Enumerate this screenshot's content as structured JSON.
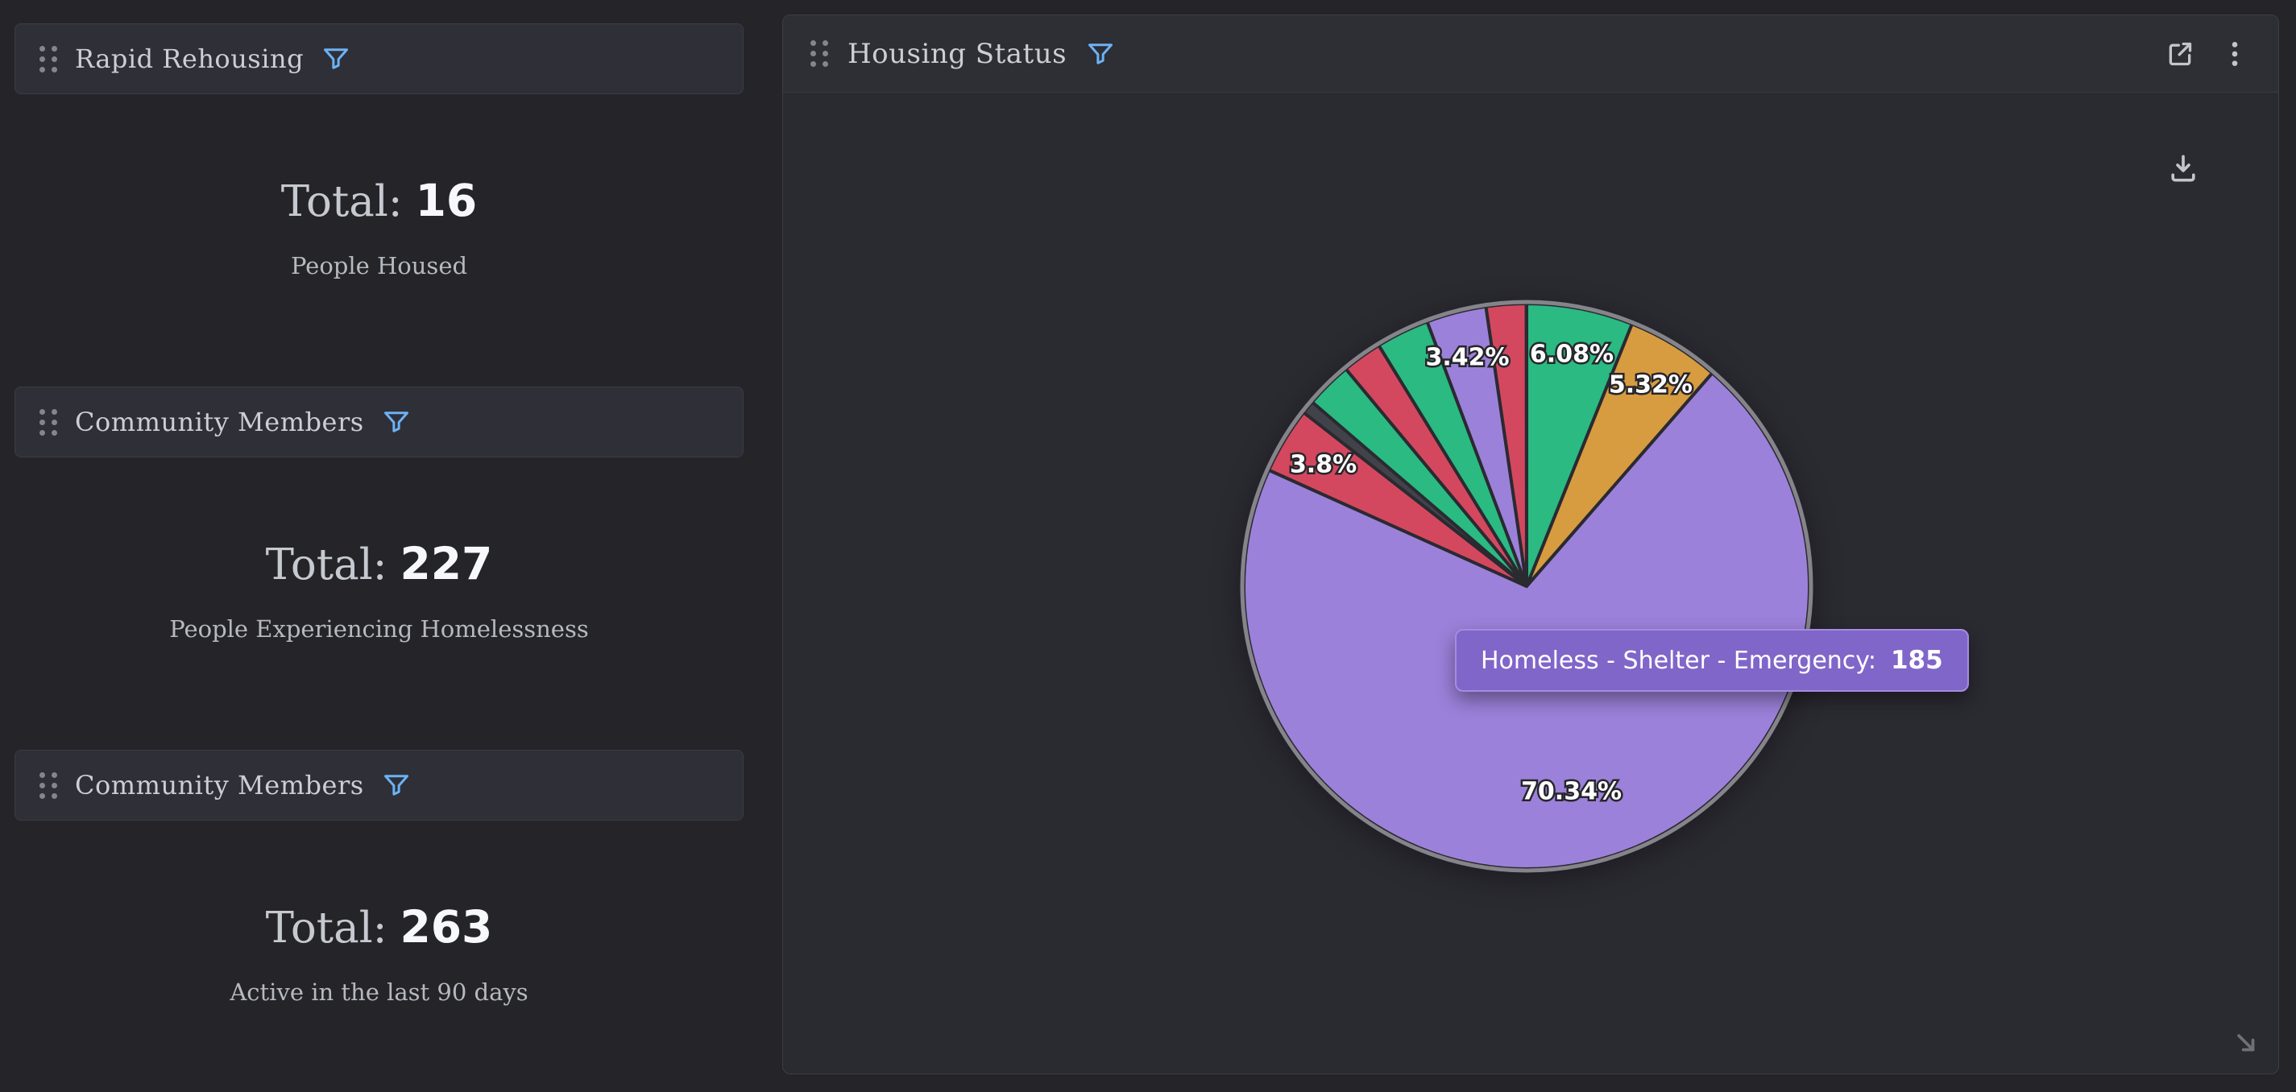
{
  "cards": [
    {
      "title": "Rapid Rehousing",
      "total_label": "Total:",
      "total_value": "16",
      "subtitle": "People Housed"
    },
    {
      "title": "Community Members",
      "total_label": "Total:",
      "total_value": "227",
      "subtitle": "People Experiencing Homelessness"
    },
    {
      "title": "Community Members",
      "total_label": "Total:",
      "total_value": "263",
      "subtitle": "Active in the last 90 days"
    }
  ],
  "panel": {
    "title": "Housing Status"
  },
  "icons": {
    "drag_handle": "six-dot-grid",
    "filter": "funnel-outline",
    "open_external": "box-with-arrow",
    "menu": "vertical-three-dots",
    "download": "arrow-into-tray",
    "resize": "diagonal-arrow"
  },
  "colors": {
    "page_bg": "#242429",
    "panel_bg": "#2a2a31",
    "header_bg": "#2f3037",
    "filter_accent": "#6cb2f5",
    "tooltip_bg": "#8066c9",
    "tooltip_border": "#a48cdf",
    "pie_ring": "#84848a"
  },
  "chart_data": {
    "type": "pie",
    "title": "Housing Status",
    "total": 263,
    "legend_position": "none",
    "start_angle_deg": 0,
    "direction": "clockwise",
    "slices": [
      {
        "pct": 6.08,
        "label": "6.08%",
        "color": "#2aba82"
      },
      {
        "pct": 5.32,
        "label": "5.32%",
        "color": "#d79b40"
      },
      {
        "pct": 70.34,
        "label": "70.34%",
        "color": "#9c81da",
        "name": "Homeless - Shelter - Emergency",
        "value": 185
      },
      {
        "pct": 3.8,
        "label": "3.8%",
        "color": "#d4485f"
      },
      {
        "pct": 0.76,
        "label": "",
        "color": "#42424a"
      },
      {
        "pct": 2.66,
        "label": "",
        "color": "#2aba82"
      },
      {
        "pct": 2.28,
        "label": "",
        "color": "#d4485f"
      },
      {
        "pct": 3.04,
        "label": "",
        "color": "#2aba82"
      },
      {
        "pct": 3.42,
        "label": "3.42%",
        "color": "#9c81da"
      },
      {
        "pct": 2.28,
        "label": "",
        "color": "#d4485f"
      }
    ],
    "tooltip": {
      "label": "Homeless - Shelter - Emergency:",
      "value": "185"
    }
  }
}
